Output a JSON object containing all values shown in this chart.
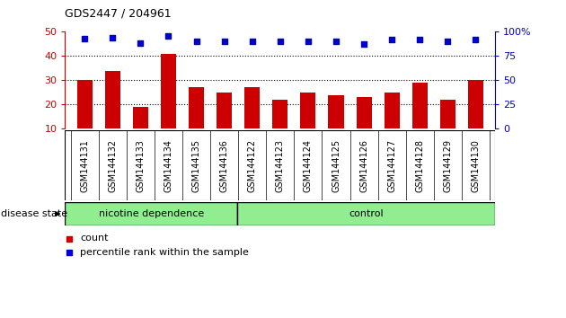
{
  "title": "GDS2447 / 204961",
  "categories": [
    "GSM144131",
    "GSM144132",
    "GSM144133",
    "GSM144134",
    "GSM144135",
    "GSM144136",
    "GSM144122",
    "GSM144123",
    "GSM144124",
    "GSM144125",
    "GSM144126",
    "GSM144127",
    "GSM144128",
    "GSM144129",
    "GSM144130"
  ],
  "bar_values": [
    30,
    34,
    19,
    41,
    27,
    25,
    27,
    22,
    25,
    24,
    23,
    25,
    29,
    22,
    30
  ],
  "percentile_values": [
    93,
    94,
    88,
    96,
    90,
    90,
    90,
    90,
    90,
    90,
    87,
    92,
    92,
    90,
    92
  ],
  "bar_color": "#cc0000",
  "percentile_color": "#0000cc",
  "ylim_left": [
    10,
    50
  ],
  "ylim_right": [
    0,
    100
  ],
  "yticks_left": [
    10,
    20,
    30,
    40,
    50
  ],
  "yticks_right": [
    0,
    25,
    50,
    75,
    100
  ],
  "grid_lines": [
    20,
    30,
    40
  ],
  "n_nicotine": 6,
  "n_control": 9,
  "nicotine_color": "#90ee90",
  "control_color": "#90ee90",
  "label_count": "count",
  "label_percentile": "percentile rank within the sample",
  "disease_state_label": "disease state",
  "nicotine_label": "nicotine dependence",
  "control_label": "control",
  "bg_color": "#ffffff",
  "tick_area_color": "#c8c8c8",
  "figsize": [
    6.3,
    3.54
  ],
  "dpi": 100
}
